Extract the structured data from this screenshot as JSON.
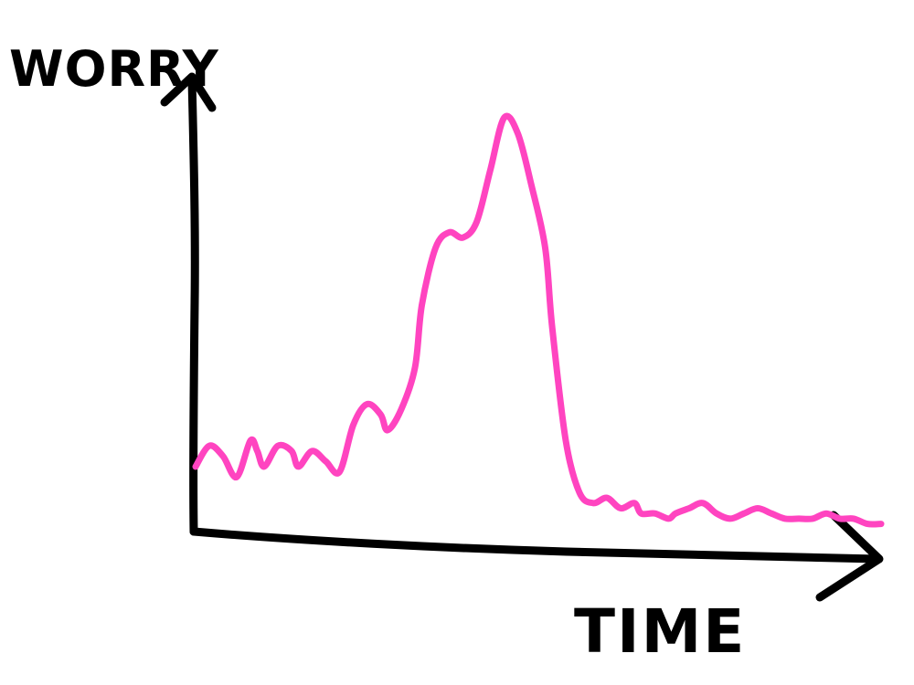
{
  "chart_data": {
    "type": "line",
    "title": "",
    "xlabel": "TIME",
    "ylabel": "WORRY",
    "xlim": [
      0,
      100
    ],
    "ylim": [
      0,
      100
    ],
    "grid": false,
    "legend": "none",
    "series": [
      {
        "color": "#ff44c0",
        "x": [
          0,
          2,
          4,
          6,
          8,
          9,
          10,
          12,
          14,
          15,
          17,
          19,
          21,
          23,
          25,
          27,
          28,
          30,
          32,
          33,
          35,
          37,
          39,
          41,
          43,
          45,
          47,
          49,
          51,
          52,
          54,
          56,
          58,
          60,
          62,
          64,
          65,
          67,
          69,
          70,
          72,
          74,
          76,
          78,
          80,
          82,
          84,
          86,
          88,
          90,
          92,
          94,
          96,
          98,
          100
        ],
        "y": [
          13,
          17,
          15,
          11,
          18,
          16,
          13,
          17,
          16,
          13,
          16,
          14,
          12,
          21,
          25,
          23,
          20,
          24,
          32,
          44,
          55,
          58,
          57,
          60,
          70,
          80,
          77,
          67,
          55,
          40,
          18,
          8,
          6,
          7,
          5,
          6,
          4,
          4,
          3,
          4,
          5,
          6,
          4,
          3,
          4,
          5,
          4,
          3,
          3,
          3,
          4,
          3,
          3,
          2,
          2
        ]
      }
    ]
  }
}
